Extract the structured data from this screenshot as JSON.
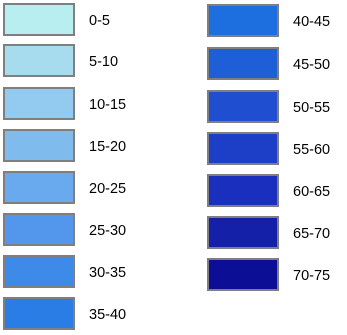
{
  "legend": {
    "left_column": [
      {
        "label": "0-5",
        "color": "#b8eef0"
      },
      {
        "label": "5-10",
        "color": "#a6dcee"
      },
      {
        "label": "10-15",
        "color": "#93caef"
      },
      {
        "label": "15-20",
        "color": "#80bbed"
      },
      {
        "label": "20-25",
        "color": "#69a9ed"
      },
      {
        "label": "25-30",
        "color": "#5297ec"
      },
      {
        "label": "30-35",
        "color": "#3e8ae8"
      },
      {
        "label": "35-40",
        "color": "#2a7de4"
      }
    ],
    "right_column": [
      {
        "label": "40-45",
        "color": "#1d6fdf"
      },
      {
        "label": "45-50",
        "color": "#1e5fd8"
      },
      {
        "label": "50-55",
        "color": "#1f4ed0"
      },
      {
        "label": "55-60",
        "color": "#1d3ec7"
      },
      {
        "label": "60-65",
        "color": "#1a2fbe"
      },
      {
        "label": "65-70",
        "color": "#1420a8"
      },
      {
        "label": "70-75",
        "color": "#0c0f96"
      }
    ]
  }
}
